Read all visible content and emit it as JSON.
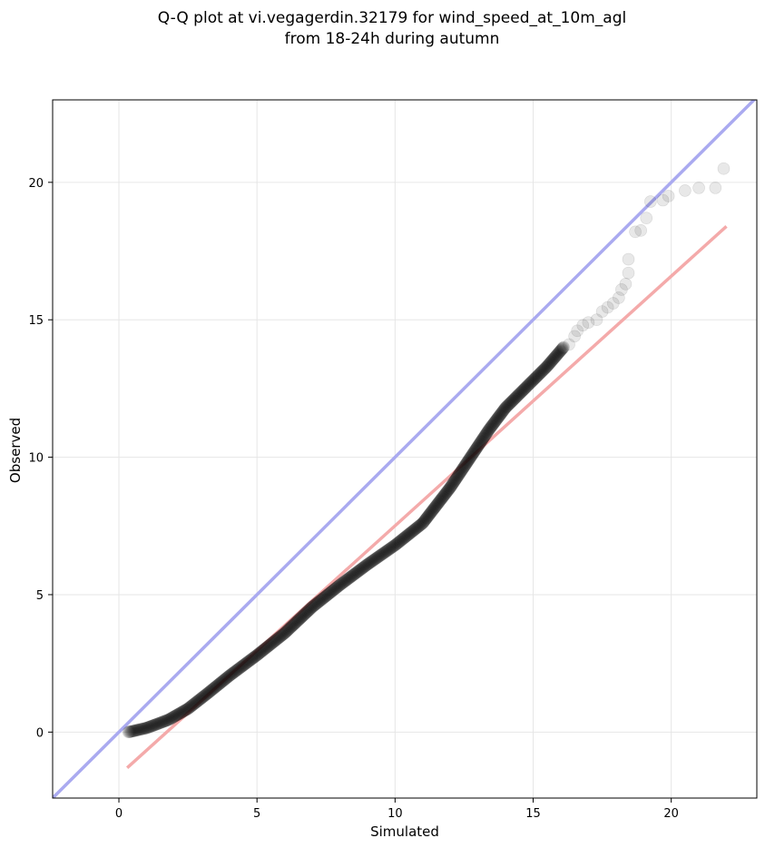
{
  "chart_data": {
    "type": "scatter",
    "title_lines": [
      "Q-Q plot at vi.vegagerdin.32179 for wind_speed_at_10m_agl",
      "from 18-24h during autumn"
    ],
    "xlabel": "Simulated",
    "ylabel": "Observed",
    "xlim": [
      -2.4,
      23.1
    ],
    "ylim": [
      -2.4,
      23.0
    ],
    "xticks": [
      0,
      5,
      10,
      15,
      20
    ],
    "yticks": [
      0,
      5,
      10,
      15,
      20
    ],
    "grid": true,
    "identity_line": {
      "color": "#aaaaf0"
    },
    "fit_line": {
      "color": "#f4aaaa",
      "points": [
        [
          0.3,
          -1.3
        ],
        [
          22.0,
          18.4
        ]
      ]
    },
    "point_color": "#000000",
    "dense_curve": [
      [
        0.35,
        0.0
      ],
      [
        1.0,
        0.15
      ],
      [
        1.8,
        0.45
      ],
      [
        2.5,
        0.85
      ],
      [
        3.2,
        1.4
      ],
      [
        4.0,
        2.05
      ],
      [
        5.0,
        2.8
      ],
      [
        6.0,
        3.6
      ],
      [
        7.0,
        4.55
      ],
      [
        8.0,
        5.35
      ],
      [
        9.0,
        6.1
      ],
      [
        10.0,
        6.8
      ],
      [
        11.0,
        7.6
      ],
      [
        12.0,
        8.9
      ],
      [
        12.8,
        10.1
      ],
      [
        13.4,
        11.0
      ],
      [
        14.0,
        11.8
      ],
      [
        14.7,
        12.5
      ],
      [
        15.5,
        13.3
      ],
      [
        16.1,
        14.0
      ]
    ],
    "tail_points": [
      [
        16.3,
        14.1
      ],
      [
        16.5,
        14.4
      ],
      [
        16.6,
        14.6
      ],
      [
        16.8,
        14.8
      ],
      [
        17.0,
        14.9
      ],
      [
        17.3,
        15.0
      ],
      [
        17.5,
        15.3
      ],
      [
        17.7,
        15.45
      ],
      [
        17.9,
        15.6
      ],
      [
        18.1,
        15.8
      ],
      [
        18.2,
        16.1
      ],
      [
        18.35,
        16.3
      ],
      [
        18.45,
        16.7
      ],
      [
        18.45,
        17.2
      ],
      [
        18.7,
        18.2
      ],
      [
        18.9,
        18.25
      ],
      [
        19.1,
        18.7
      ],
      [
        19.25,
        19.3
      ],
      [
        19.7,
        19.35
      ],
      [
        19.9,
        19.5
      ],
      [
        20.5,
        19.7
      ],
      [
        21.0,
        19.8
      ],
      [
        21.6,
        19.8
      ],
      [
        21.9,
        20.5
      ]
    ]
  }
}
